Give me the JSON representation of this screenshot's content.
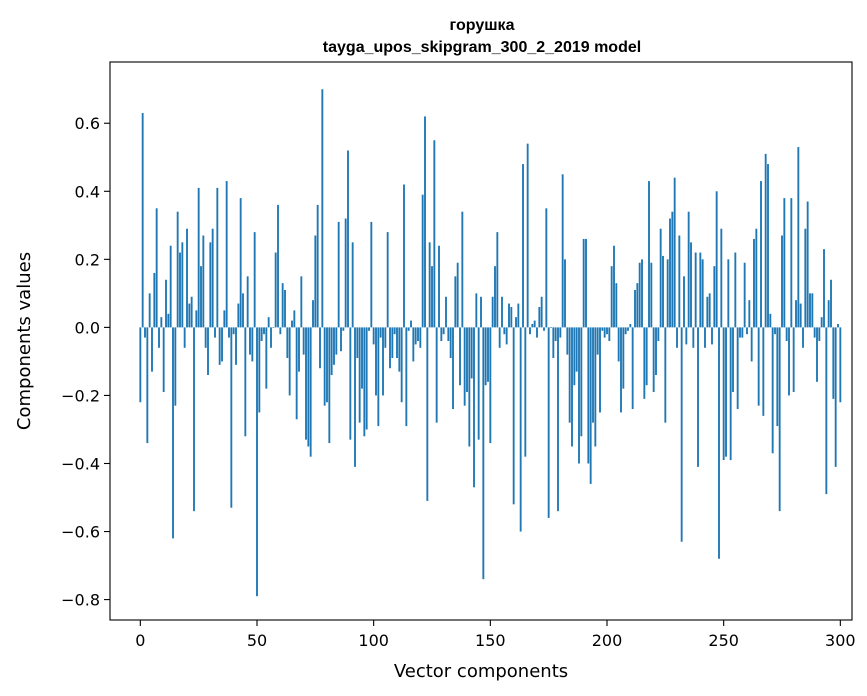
{
  "chart_data": {
    "type": "bar",
    "title": "горушка",
    "subtitle": "tayga_upos_skipgram_300_2_2019 model",
    "xlabel": "Vector components",
    "ylabel": "Components values",
    "xlim": [
      -13,
      305
    ],
    "ylim": [
      -0.86,
      0.78
    ],
    "xticks": [
      0,
      50,
      100,
      150,
      200,
      250,
      300
    ],
    "yticks": [
      -0.8,
      -0.6,
      -0.4,
      -0.2,
      0.0,
      0.2,
      0.4,
      0.6
    ],
    "ytick_labels": [
      "−0.8",
      "−0.6",
      "−0.4",
      "−0.2",
      "0.0",
      "0.2",
      "0.4",
      "0.6"
    ],
    "xtick_labels": [
      "0",
      "50",
      "100",
      "150",
      "200",
      "250",
      "300"
    ],
    "bar_color": "#1f77b4",
    "values": [
      -0.22,
      0.63,
      -0.03,
      -0.34,
      0.1,
      -0.13,
      0.16,
      0.35,
      -0.06,
      0.03,
      -0.19,
      0.14,
      0.04,
      0.24,
      -0.62,
      -0.23,
      0.34,
      0.22,
      0.25,
      -0.06,
      0.29,
      0.07,
      0.09,
      -0.54,
      0.05,
      0.41,
      0.18,
      0.27,
      -0.06,
      -0.14,
      0.25,
      0.29,
      -0.03,
      0.41,
      -0.11,
      -0.1,
      0.05,
      0.43,
      -0.03,
      -0.53,
      -0.02,
      -0.11,
      0.07,
      0.38,
      0.1,
      -0.32,
      0.15,
      -0.08,
      -0.1,
      0.28,
      -0.79,
      -0.25,
      -0.04,
      -0.02,
      -0.18,
      0.03,
      -0.06,
      0.0,
      0.22,
      0.36,
      -0.02,
      0.13,
      0.11,
      -0.09,
      -0.2,
      0.02,
      0.05,
      -0.27,
      -0.13,
      0.15,
      -0.08,
      -0.33,
      -0.35,
      -0.38,
      0.08,
      0.27,
      0.36,
      -0.12,
      0.7,
      -0.23,
      -0.22,
      -0.34,
      -0.14,
      -0.11,
      -0.08,
      0.31,
      -0.07,
      -0.01,
      0.32,
      0.52,
      -0.33,
      0.25,
      -0.41,
      -0.09,
      -0.28,
      -0.18,
      -0.32,
      -0.3,
      -0.01,
      0.31,
      -0.05,
      -0.2,
      -0.29,
      -0.03,
      -0.2,
      -0.06,
      0.28,
      -0.12,
      -0.09,
      -0.02,
      -0.09,
      -0.13,
      -0.22,
      0.42,
      -0.29,
      -0.01,
      0.02,
      -0.1,
      -0.05,
      -0.04,
      -0.06,
      0.39,
      0.62,
      -0.51,
      0.25,
      0.18,
      0.55,
      -0.28,
      0.24,
      -0.04,
      -0.02,
      0.09,
      -0.04,
      -0.09,
      -0.24,
      0.15,
      0.19,
      -0.17,
      0.34,
      -0.23,
      -0.19,
      -0.35,
      -0.15,
      -0.47,
      0.1,
      -0.33,
      0.09,
      -0.74,
      -0.17,
      -0.16,
      -0.34,
      0.09,
      0.18,
      0.28,
      -0.06,
      0.09,
      -0.02,
      -0.05,
      0.07,
      0.06,
      -0.52,
      0.03,
      0.07,
      -0.6,
      0.48,
      -0.38,
      0.54,
      -0.02,
      0.01,
      0.02,
      -0.03,
      0.06,
      0.09,
      -0.01,
      0.35,
      -0.56,
      0.0,
      -0.09,
      -0.04,
      -0.54,
      -0.03,
      0.45,
      0.2,
      -0.08,
      -0.28,
      -0.35,
      -0.17,
      -0.13,
      -0.4,
      -0.32,
      0.26,
      0.26,
      -0.4,
      -0.46,
      -0.28,
      -0.35,
      -0.08,
      -0.25,
      -0.01,
      -0.03,
      -0.02,
      -0.04,
      0.18,
      0.24,
      0.13,
      -0.1,
      -0.25,
      -0.18,
      -0.02,
      -0.01,
      0.01,
      -0.24,
      0.11,
      0.13,
      0.19,
      0.2,
      -0.21,
      -0.17,
      0.43,
      0.19,
      -0.19,
      -0.14,
      -0.04,
      0.29,
      0.21,
      -0.28,
      0.2,
      0.32,
      0.34,
      0.44,
      -0.06,
      0.27,
      -0.63,
      0.15,
      -0.05,
      0.34,
      0.25,
      -0.06,
      0.22,
      -0.41,
      0.22,
      0.2,
      -0.06,
      0.09,
      0.1,
      -0.05,
      0.18,
      0.4,
      -0.68,
      0.29,
      -0.39,
      -0.38,
      0.2,
      -0.39,
      -0.19,
      0.22,
      -0.24,
      -0.03,
      -0.03,
      0.19,
      -0.02,
      0.08,
      -0.1,
      0.26,
      0.29,
      -0.23,
      0.43,
      -0.26,
      0.51,
      0.48,
      0.04,
      -0.37,
      -0.02,
      -0.29,
      -0.54,
      0.27,
      0.38,
      -0.04,
      -0.2,
      0.38,
      -0.19,
      0.08,
      0.53,
      0.07,
      -0.06,
      0.29,
      0.37,
      0.1,
      0.1,
      -0.03,
      -0.16,
      -0.04,
      0.03,
      0.23,
      -0.49,
      0.08,
      0.14,
      -0.21,
      -0.41,
      0.01,
      -0.22
    ]
  }
}
